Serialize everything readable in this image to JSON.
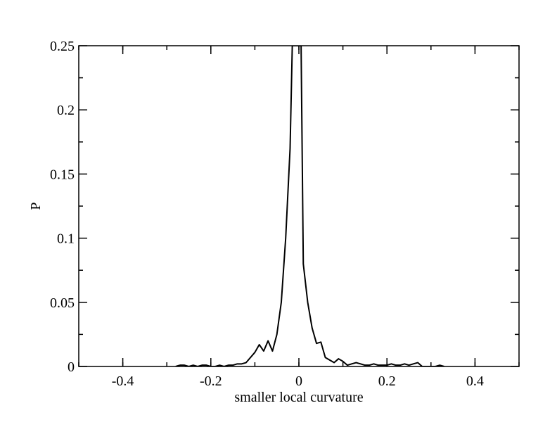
{
  "chart_data": {
    "type": "line",
    "title": "",
    "xlabel": "smaller local curvature",
    "ylabel": "P",
    "xlim": [
      -0.5,
      0.5
    ],
    "ylim": [
      0,
      0.25
    ],
    "grid": false,
    "x_ticks": [
      {
        "value": -0.4,
        "label": "-0.4"
      },
      {
        "value": -0.2,
        "label": "-0.2"
      },
      {
        "value": 0,
        "label": "0"
      },
      {
        "value": 0.2,
        "label": "0.2"
      },
      {
        "value": 0.4,
        "label": "0.4"
      }
    ],
    "y_ticks": [
      {
        "value": 0,
        "label": "0"
      },
      {
        "value": 0.05,
        "label": "0.05"
      },
      {
        "value": 0.1,
        "label": "0.1"
      },
      {
        "value": 0.15,
        "label": "0.15"
      },
      {
        "value": 0.2,
        "label": "0.2"
      },
      {
        "value": 0.25,
        "label": "0.25"
      }
    ],
    "series": [
      {
        "color": "#000000",
        "x": [
          -0.28,
          -0.27,
          -0.26,
          -0.25,
          -0.24,
          -0.23,
          -0.22,
          -0.21,
          -0.2,
          -0.19,
          -0.18,
          -0.17,
          -0.16,
          -0.15,
          -0.14,
          -0.13,
          -0.12,
          -0.11,
          -0.1,
          -0.09,
          -0.08,
          -0.07,
          -0.06,
          -0.05,
          -0.04,
          -0.03,
          -0.02,
          -0.015,
          -0.01,
          -0.005,
          0,
          0.005,
          0.01,
          0.02,
          0.03,
          0.04,
          0.05,
          0.06,
          0.07,
          0.08,
          0.09,
          0.1,
          0.11,
          0.12,
          0.13,
          0.14,
          0.15,
          0.16,
          0.17,
          0.18,
          0.19,
          0.2,
          0.21,
          0.22,
          0.23,
          0.24,
          0.25,
          0.26,
          0.27,
          0.28,
          0.29,
          0.3,
          0.31,
          0.32,
          0.33
        ],
        "y": [
          0,
          0.001,
          0.001,
          0,
          0.001,
          0,
          0.001,
          0.001,
          0,
          0,
          0.001,
          0,
          0.001,
          0.001,
          0.002,
          0.002,
          0.003,
          0.007,
          0.011,
          0.017,
          0.012,
          0.02,
          0.012,
          0.025,
          0.05,
          0.1,
          0.17,
          0.25,
          0.25,
          0.25,
          0.25,
          0.25,
          0.08,
          0.05,
          0.03,
          0.018,
          0.019,
          0.007,
          0.005,
          0.003,
          0.006,
          0.004,
          0.001,
          0.002,
          0.003,
          0.002,
          0.001,
          0.001,
          0.002,
          0.001,
          0.001,
          0.001,
          0.002,
          0.001,
          0.001,
          0.002,
          0.001,
          0.002,
          0.003,
          0,
          0,
          0,
          0,
          0.001,
          0
        ]
      }
    ]
  }
}
